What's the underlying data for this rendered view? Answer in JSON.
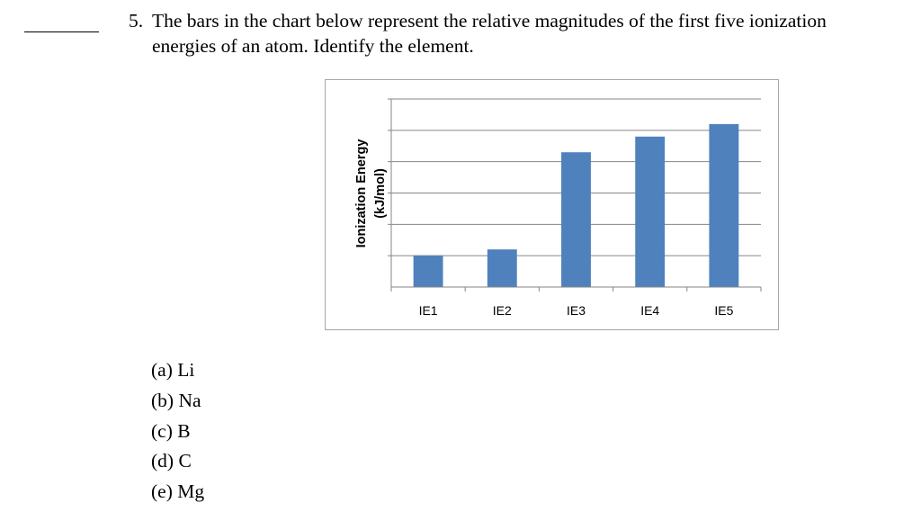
{
  "question": {
    "number": "5.",
    "line1": "The bars in the chart below represent the relative magnitudes of the first five ionization",
    "line2": "energies of an atom.  Identify the element."
  },
  "chart_data": {
    "type": "bar",
    "categories": [
      "IE1",
      "IE2",
      "IE3",
      "IE4",
      "IE5"
    ],
    "values": [
      1.0,
      1.2,
      4.3,
      4.8,
      5.2
    ],
    "ylabel_line1": "Ionization Energy",
    "ylabel_line2": "(kJ/mol)",
    "ylim": [
      0,
      6
    ],
    "y_tick_labels_shown": false,
    "grid": true,
    "bar_color": "#4f81bd",
    "grid_color": "#868686"
  },
  "choices": [
    {
      "letter": "(a)",
      "text": "Li"
    },
    {
      "letter": "(b)",
      "text": "Na"
    },
    {
      "letter": "(c)",
      "text": "B"
    },
    {
      "letter": "(d)",
      "text": "C"
    },
    {
      "letter": "(e)",
      "text": "Mg"
    }
  ]
}
